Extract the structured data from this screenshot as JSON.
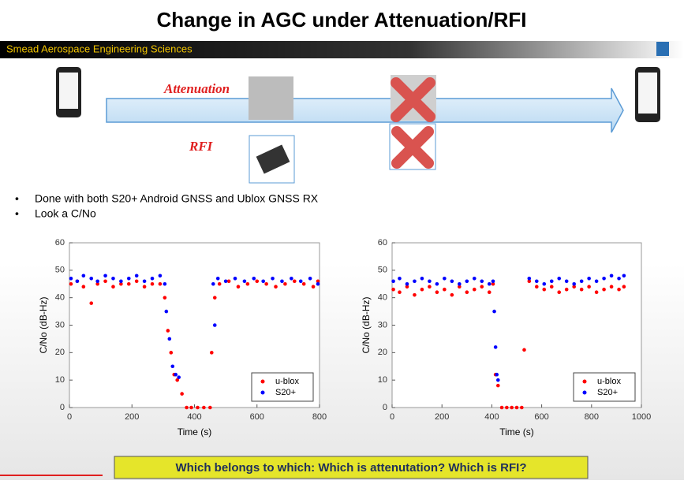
{
  "title": "Change in AGC under Attenuation/RFI",
  "banner": "Smead Aerospace Engineering Sciences",
  "diagram": {
    "attenuation": "Attenuation",
    "rfi": "RFI"
  },
  "bullets": [
    "Done with both S20+ Android GNSS and Ublox GNSS RX",
    "Look a C/No"
  ],
  "question": "Which belongs to which: Which is attenutation? Which is RFI?",
  "chart_data": [
    {
      "type": "scatter",
      "xlabel": "Time (s)",
      "ylabel": "C/No (dB-Hz)",
      "xlim": [
        0,
        800
      ],
      "ylim": [
        0,
        60
      ],
      "xticks": [
        0,
        200,
        400,
        600,
        800
      ],
      "yticks": [
        0,
        10,
        20,
        30,
        40,
        50,
        60
      ],
      "legend": "lower right",
      "series": [
        {
          "name": "u-blox",
          "color": "#ff0000",
          "x": [
            5,
            25,
            45,
            70,
            90,
            115,
            140,
            165,
            190,
            215,
            240,
            265,
            290,
            305,
            315,
            325,
            335,
            345,
            360,
            375,
            390,
            410,
            430,
            450,
            455,
            465,
            480,
            510,
            540,
            570,
            600,
            630,
            660,
            690,
            720,
            750,
            780,
            795
          ],
          "values": [
            45,
            46,
            44,
            38,
            45,
            46,
            44,
            45,
            45,
            46,
            44,
            45,
            45,
            40,
            28,
            20,
            12,
            10,
            5,
            0,
            0,
            0,
            0,
            0,
            20,
            40,
            45,
            46,
            44,
            45,
            46,
            45,
            44,
            45,
            46,
            45,
            44,
            46
          ]
        },
        {
          "name": "S20+",
          "color": "#0000ff",
          "x": [
            5,
            25,
            45,
            70,
            90,
            115,
            140,
            165,
            190,
            215,
            240,
            265,
            290,
            305,
            310,
            320,
            330,
            340,
            350,
            460,
            465,
            475,
            500,
            530,
            560,
            590,
            620,
            650,
            680,
            710,
            740,
            770,
            795
          ],
          "values": [
            47,
            46,
            48,
            47,
            46,
            48,
            47,
            46,
            47,
            48,
            46,
            47,
            48,
            45,
            35,
            25,
            15,
            12,
            11,
            45,
            30,
            47,
            46,
            47,
            46,
            47,
            46,
            47,
            46,
            47,
            46,
            47,
            45
          ]
        }
      ]
    },
    {
      "type": "scatter",
      "xlabel": "Time (s)",
      "ylabel": "C/No (dB-Hz)",
      "xlim": [
        0,
        1000
      ],
      "ylim": [
        0,
        60
      ],
      "xticks": [
        0,
        200,
        400,
        600,
        800,
        1000
      ],
      "yticks": [
        0,
        10,
        20,
        30,
        40,
        50,
        60
      ],
      "legend": "lower right",
      "series": [
        {
          "name": "u-blox",
          "color": "#ff0000",
          "x": [
            5,
            30,
            60,
            90,
            120,
            150,
            180,
            210,
            240,
            270,
            300,
            330,
            360,
            390,
            405,
            415,
            425,
            440,
            460,
            480,
            500,
            520,
            530,
            550,
            580,
            610,
            640,
            670,
            700,
            730,
            760,
            790,
            820,
            850,
            880,
            910,
            930
          ],
          "values": [
            43,
            42,
            44,
            41,
            43,
            44,
            42,
            43,
            41,
            44,
            42,
            43,
            44,
            42,
            45,
            12,
            8,
            0,
            0,
            0,
            0,
            0,
            21,
            46,
            44,
            43,
            44,
            42,
            43,
            44,
            43,
            44,
            42,
            43,
            44,
            43,
            44
          ]
        },
        {
          "name": "S20+",
          "color": "#0000ff",
          "x": [
            5,
            30,
            60,
            90,
            120,
            150,
            180,
            210,
            240,
            270,
            300,
            330,
            360,
            390,
            405,
            410,
            415,
            420,
            425,
            550,
            580,
            610,
            640,
            670,
            700,
            730,
            760,
            790,
            820,
            850,
            880,
            910,
            930
          ],
          "values": [
            46,
            47,
            45,
            46,
            47,
            46,
            45,
            47,
            46,
            45,
            46,
            47,
            46,
            45,
            46,
            35,
            22,
            12,
            10,
            47,
            46,
            45,
            46,
            47,
            46,
            45,
            46,
            47,
            46,
            47,
            48,
            47,
            48
          ]
        }
      ]
    }
  ]
}
